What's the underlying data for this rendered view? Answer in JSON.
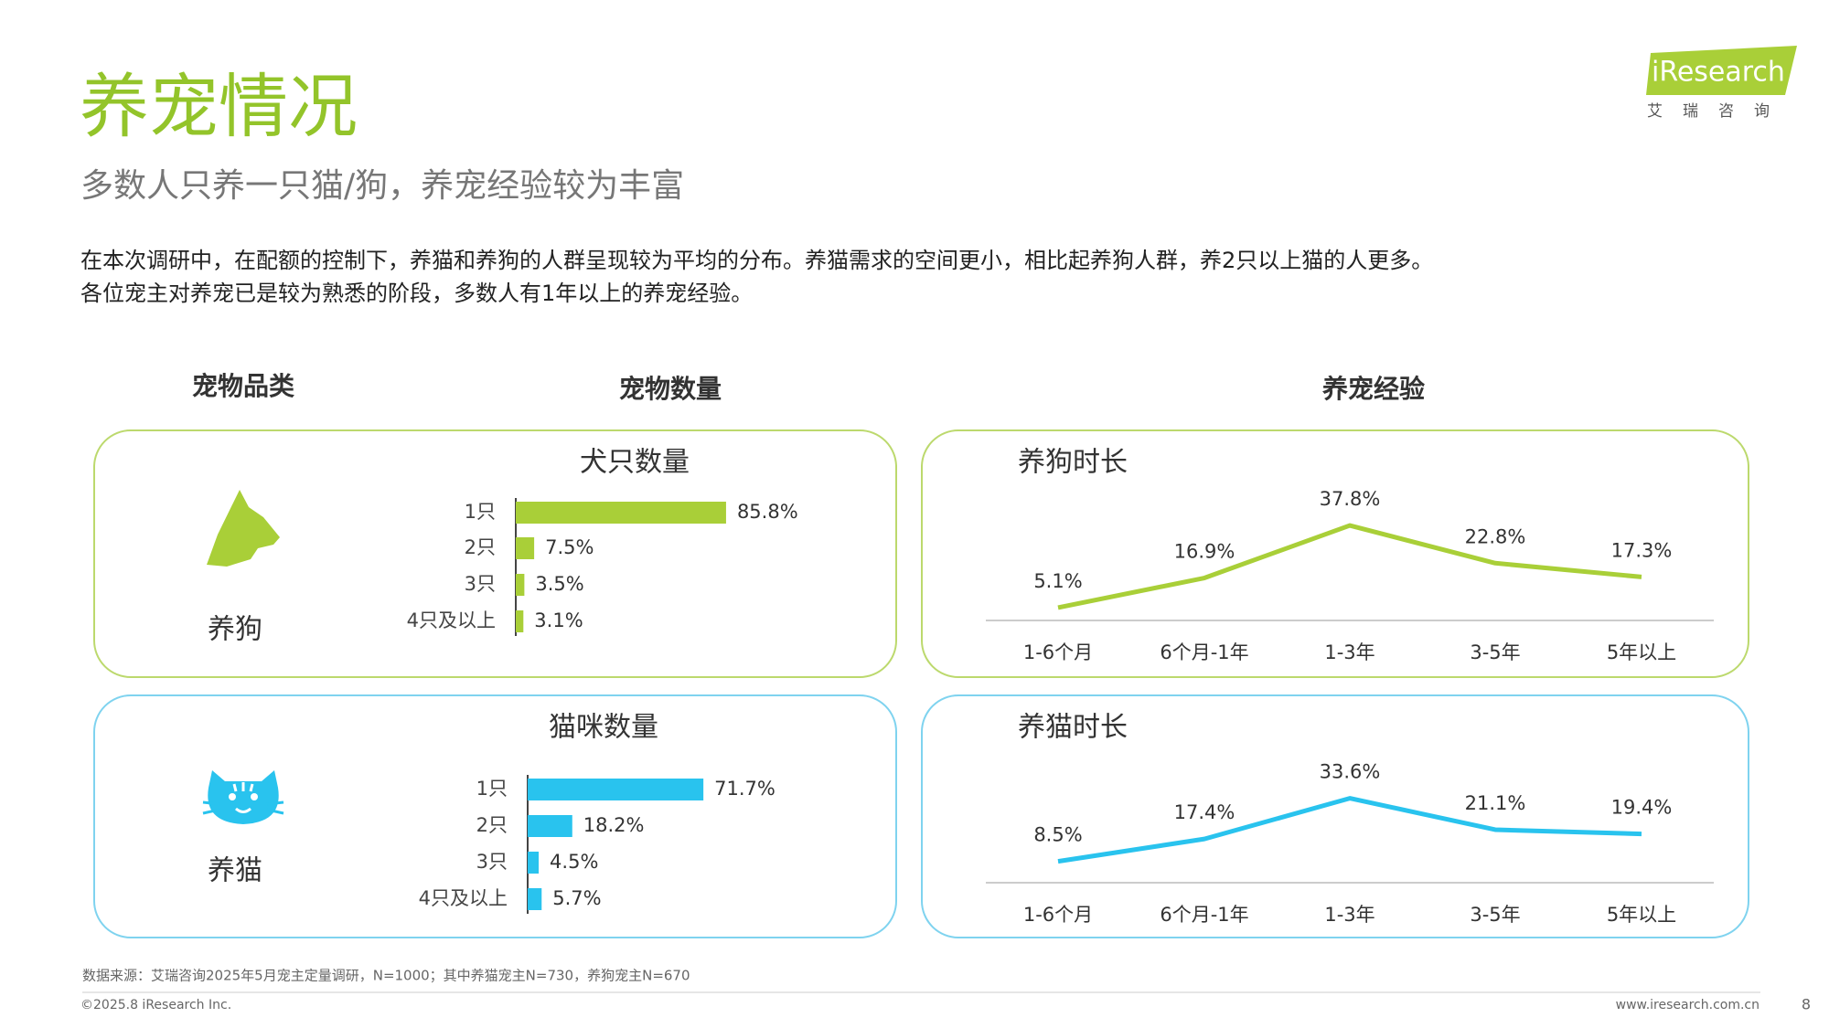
{
  "header": {
    "title": "养宠情况",
    "subtitle": "多数人只养一只猫/狗，养宠经验较为丰富",
    "description": [
      "在本次调研中，在配额的控制下，养猫和养狗的人群呈现较为平均的分布。养猫需求的空间更小，相比起养狗人群，养2只以上猫的人更多。",
      "各位宠主对养宠已是较为熟悉的阶段，多数人有1年以上的养宠经验。"
    ]
  },
  "logo": {
    "brand": "iResearch",
    "tagline": "艾瑞咨询"
  },
  "sections": {
    "category": "宠物品类",
    "count": "宠物数量",
    "experience": "养宠经验"
  },
  "pets": [
    "养狗",
    "养猫"
  ],
  "chart_data": [
    {
      "type": "bar",
      "orientation": "horizontal",
      "title": "犬只数量",
      "categories": [
        "1只",
        "2只",
        "3只",
        "4只及以上"
      ],
      "values": [
        85.8,
        7.5,
        3.5,
        3.1
      ],
      "value_labels": [
        "85.8%",
        "7.5%",
        "3.5%",
        "3.1%"
      ],
      "color": "#a9cf38"
    },
    {
      "type": "line",
      "title": "养狗时长",
      "categories": [
        "1-6个月",
        "6个月-1年",
        "1-3年",
        "3-5年",
        "5年以上"
      ],
      "series": [
        {
          "color": "#a9cf38",
          "values": [
            5.1,
            16.9,
            37.8,
            22.8,
            17.3
          ],
          "value_labels": [
            "5.1%",
            "16.9%",
            "37.8%",
            "22.8%",
            "17.3%"
          ]
        }
      ]
    },
    {
      "type": "bar",
      "orientation": "horizontal",
      "title": "猫咪数量",
      "categories": [
        "1只",
        "2只",
        "3只",
        "4只及以上"
      ],
      "values": [
        71.7,
        18.2,
        4.5,
        5.7
      ],
      "value_labels": [
        "71.7%",
        "18.2%",
        "4.5%",
        "5.7%"
      ],
      "color": "#29c3ee"
    },
    {
      "type": "line",
      "title": "养猫时长",
      "categories": [
        "1-6个月",
        "6个月-1年",
        "1-3年",
        "3-5年",
        "5年以上"
      ],
      "series": [
        {
          "color": "#29c3ee",
          "values": [
            8.5,
            17.4,
            33.6,
            21.1,
            19.4
          ],
          "value_labels": [
            "8.5%",
            "17.4%",
            "33.6%",
            "21.1%",
            "19.4%"
          ]
        }
      ]
    }
  ],
  "footer": {
    "source": "数据来源：艾瑞咨询2025年5月宠主定量调研，N=1000；其中养猫宠主N=730，养狗宠主N=670",
    "copyright": "©2025.8 iResearch Inc.",
    "url": "www.iresearch.com.cn",
    "page": 8
  }
}
